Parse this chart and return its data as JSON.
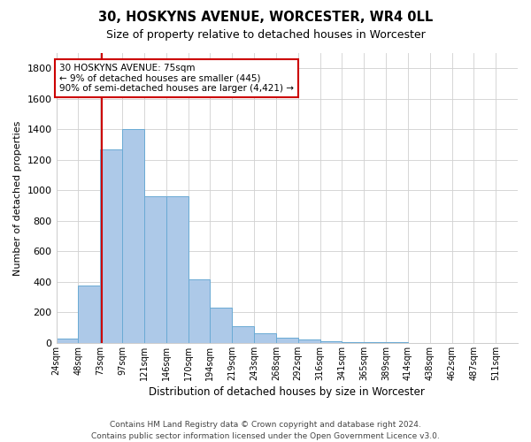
{
  "title1": "30, HOSKYNS AVENUE, WORCESTER, WR4 0LL",
  "title2": "Size of property relative to detached houses in Worcester",
  "xlabel": "Distribution of detached houses by size in Worcester",
  "ylabel": "Number of detached properties",
  "footer": "Contains HM Land Registry data © Crown copyright and database right 2024.\nContains public sector information licensed under the Open Government Licence v3.0.",
  "bin_labels": [
    "24sqm",
    "48sqm",
    "73sqm",
    "97sqm",
    "121sqm",
    "146sqm",
    "170sqm",
    "194sqm",
    "219sqm",
    "243sqm",
    "268sqm",
    "292sqm",
    "316sqm",
    "341sqm",
    "365sqm",
    "389sqm",
    "414sqm",
    "438sqm",
    "462sqm",
    "487sqm",
    "511sqm"
  ],
  "bar_heights": [
    30,
    375,
    1270,
    1400,
    960,
    960,
    415,
    230,
    110,
    65,
    35,
    20,
    12,
    8,
    5,
    3,
    2,
    1,
    1,
    1,
    0
  ],
  "bar_color": "#adc9e8",
  "bar_edge_color": "#6aaad4",
  "red_line_bin": 2.08,
  "ylim": [
    0,
    1900
  ],
  "yticks": [
    0,
    200,
    400,
    600,
    800,
    1000,
    1200,
    1400,
    1600,
    1800
  ],
  "annotation_title": "30 HOSKYNS AVENUE: 75sqm",
  "annotation_line1": "← 9% of detached houses are smaller (445)",
  "annotation_line2": "90% of semi-detached houses are larger (4,421) →",
  "annotation_box_color": "#ffffff",
  "annotation_border_color": "#cc0000",
  "grid_color": "#d0d0d0",
  "background_color": "#ffffff"
}
